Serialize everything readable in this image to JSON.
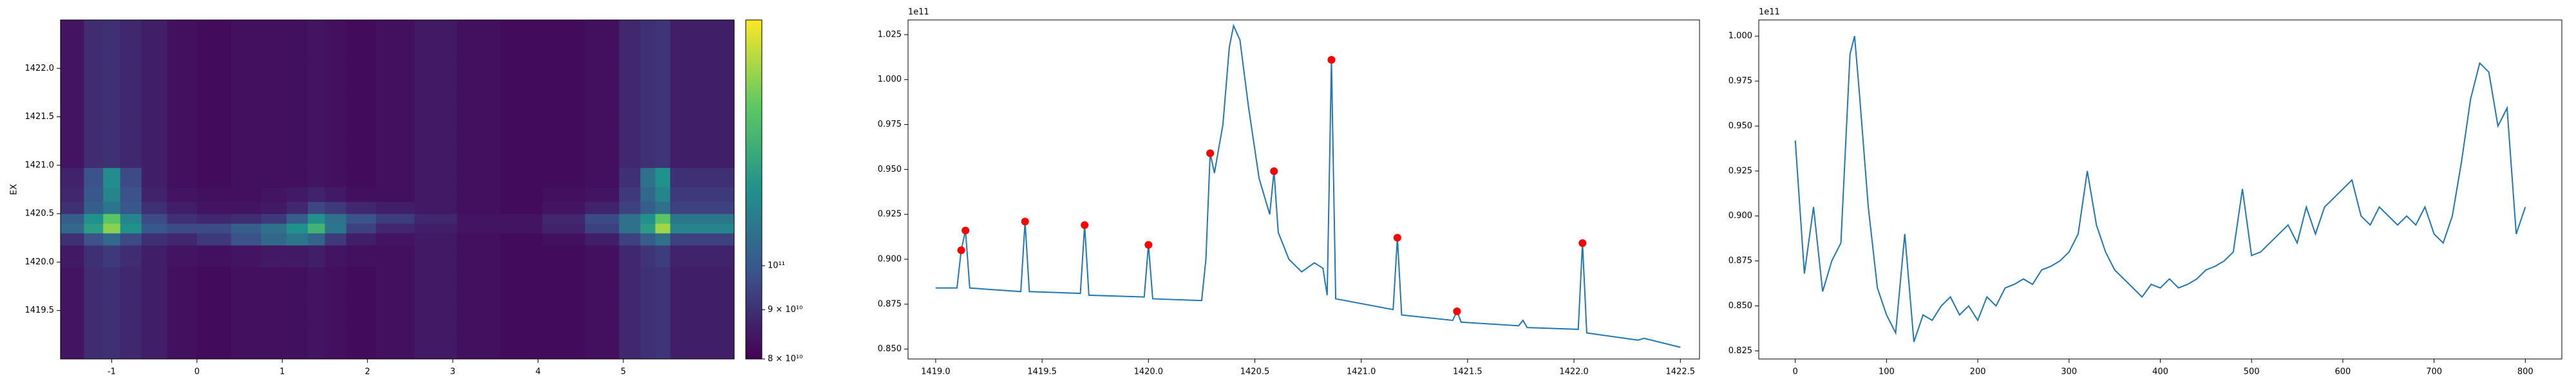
{
  "chart_data": [
    {
      "type": "heatmap",
      "ylabel": "EX",
      "x": [
        -1.45,
        -1.2,
        -1.0,
        -0.8,
        -0.5,
        -0.2,
        0.2,
        0.6,
        0.9,
        1.2,
        1.4,
        1.6,
        1.9,
        2.3,
        2.8,
        3.3,
        3.8,
        4.3,
        4.8,
        5.1,
        5.3,
        5.45,
        5.65
      ],
      "y": [
        1419.2,
        1419.5,
        1419.8,
        1420.1,
        1420.25,
        1420.35,
        1420.45,
        1420.55,
        1420.7,
        1420.85,
        1421.1,
        1421.5,
        1421.9,
        1422.25
      ],
      "z": [
        [
          84000000000.0,
          89000000000.0,
          90000000000.0,
          88000000000.0,
          86000000000.0,
          83000000000.0,
          82000000000.0,
          83000000000.0,
          83000000000.0,
          83000000000.0,
          84000000000.0,
          83000000000.0,
          82000000000.0,
          83000000000.0,
          85000000000.0,
          83000000000.0,
          82000000000.0,
          82000000000.0,
          83000000000.0,
          88000000000.0,
          90000000000.0,
          91000000000.0,
          86000000000.0
        ],
        [
          84000000000.0,
          89000000000.0,
          90000000000.0,
          88000000000.0,
          86000000000.0,
          83000000000.0,
          82000000000.0,
          83000000000.0,
          83000000000.0,
          83000000000.0,
          84000000000.0,
          83000000000.0,
          82000000000.0,
          83000000000.0,
          85000000000.0,
          83000000000.0,
          82000000000.0,
          82000000000.0,
          83000000000.0,
          88000000000.0,
          90000000000.0,
          91000000000.0,
          86000000000.0
        ],
        [
          84000000000.0,
          89000000000.0,
          90000000000.0,
          88000000000.0,
          86000000000.0,
          83000000000.0,
          82000000000.0,
          83000000000.0,
          83000000000.0,
          83000000000.0,
          84000000000.0,
          83000000000.0,
          82000000000.0,
          83000000000.0,
          85000000000.0,
          83000000000.0,
          82000000000.0,
          82000000000.0,
          83000000000.0,
          88000000000.0,
          90000000000.0,
          91000000000.0,
          86000000000.0
        ],
        [
          85000000000.0,
          90000000000.0,
          92000000000.0,
          89000000000.0,
          86000000000.0,
          84000000000.0,
          83000000000.0,
          84000000000.0,
          85000000000.0,
          85000000000.0,
          86000000000.0,
          84000000000.0,
          83000000000.0,
          83000000000.0,
          85000000000.0,
          83000000000.0,
          82000000000.0,
          82000000000.0,
          83000000000.0,
          88000000000.0,
          91000000000.0,
          93000000000.0,
          87000000000.0
        ],
        [
          90000000000.0,
          98000000000.0,
          105000000000.0,
          96000000000.0,
          90000000000.0,
          88000000000.0,
          92000000000.0,
          98000000000.0,
          105000000000.0,
          110000000000.0,
          104000000000.0,
          92000000000.0,
          86000000000.0,
          84000000000.0,
          85000000000.0,
          83000000000.0,
          82000000000.0,
          83000000000.0,
          86000000000.0,
          94000000000.0,
          102000000000.0,
          108000000000.0,
          94000000000.0
        ],
        [
          105000000000.0,
          125000000000.0,
          155000000000.0,
          120000000000.0,
          100000000000.0,
          96000000000.0,
          96000000000.0,
          102000000000.0,
          108000000000.0,
          120000000000.0,
          135000000000.0,
          110000000000.0,
          94000000000.0,
          88000000000.0,
          86000000000.0,
          84000000000.0,
          84000000000.0,
          87000000000.0,
          94000000000.0,
          108000000000.0,
          125000000000.0,
          160000000000.0,
          115000000000.0
        ],
        [
          102000000000.0,
          120000000000.0,
          145000000000.0,
          115000000000.0,
          96000000000.0,
          90000000000.0,
          88000000000.0,
          89000000000.0,
          92000000000.0,
          102000000000.0,
          120000000000.0,
          108000000000.0,
          98000000000.0,
          93000000000.0,
          88000000000.0,
          84000000000.0,
          84000000000.0,
          88000000000.0,
          96000000000.0,
          108000000000.0,
          120000000000.0,
          145000000000.0,
          110000000000.0
        ],
        [
          90000000000.0,
          102000000000.0,
          110000000000.0,
          100000000000.0,
          90000000000.0,
          86000000000.0,
          84000000000.0,
          84000000000.0,
          85000000000.0,
          88000000000.0,
          95000000000.0,
          92000000000.0,
          88000000000.0,
          86000000000.0,
          85000000000.0,
          83000000000.0,
          82000000000.0,
          84000000000.0,
          87000000000.0,
          94000000000.0,
          102000000000.0,
          108000000000.0,
          94000000000.0
        ],
        [
          88000000000.0,
          100000000000.0,
          115000000000.0,
          98000000000.0,
          87000000000.0,
          84000000000.0,
          83000000000.0,
          83000000000.0,
          84000000000.0,
          85000000000.0,
          87000000000.0,
          85000000000.0,
          83000000000.0,
          83000000000.0,
          85000000000.0,
          83000000000.0,
          82000000000.0,
          83000000000.0,
          84000000000.0,
          92000000000.0,
          105000000000.0,
          115000000000.0,
          92000000000.0
        ],
        [
          87000000000.0,
          98000000000.0,
          118000000000.0,
          96000000000.0,
          86000000000.0,
          83000000000.0,
          82000000000.0,
          83000000000.0,
          83000000000.0,
          83000000000.0,
          84000000000.0,
          83000000000.0,
          82000000000.0,
          83000000000.0,
          85000000000.0,
          83000000000.0,
          82000000000.0,
          82000000000.0,
          83000000000.0,
          90000000000.0,
          108000000000.0,
          120000000000.0,
          90000000000.0
        ],
        [
          84000000000.0,
          89000000000.0,
          90000000000.0,
          88000000000.0,
          86000000000.0,
          83000000000.0,
          82000000000.0,
          83000000000.0,
          83000000000.0,
          83000000000.0,
          84000000000.0,
          83000000000.0,
          82000000000.0,
          83000000000.0,
          85000000000.0,
          83000000000.0,
          82000000000.0,
          82000000000.0,
          83000000000.0,
          88000000000.0,
          90000000000.0,
          91000000000.0,
          86000000000.0
        ],
        [
          84000000000.0,
          89000000000.0,
          90000000000.0,
          88000000000.0,
          86000000000.0,
          83000000000.0,
          82000000000.0,
          83000000000.0,
          83000000000.0,
          83000000000.0,
          84000000000.0,
          83000000000.0,
          82000000000.0,
          83000000000.0,
          85000000000.0,
          83000000000.0,
          82000000000.0,
          82000000000.0,
          83000000000.0,
          88000000000.0,
          90000000000.0,
          91000000000.0,
          86000000000.0
        ],
        [
          84000000000.0,
          89000000000.0,
          90000000000.0,
          88000000000.0,
          86000000000.0,
          83000000000.0,
          82000000000.0,
          83000000000.0,
          83000000000.0,
          83000000000.0,
          84000000000.0,
          83000000000.0,
          82000000000.0,
          83000000000.0,
          85000000000.0,
          83000000000.0,
          82000000000.0,
          82000000000.0,
          83000000000.0,
          88000000000.0,
          90000000000.0,
          91000000000.0,
          86000000000.0
        ],
        [
          84000000000.0,
          89000000000.0,
          90000000000.0,
          88000000000.0,
          86000000000.0,
          83000000000.0,
          82000000000.0,
          83000000000.0,
          83000000000.0,
          83000000000.0,
          84000000000.0,
          83000000000.0,
          82000000000.0,
          83000000000.0,
          85000000000.0,
          83000000000.0,
          82000000000.0,
          82000000000.0,
          83000000000.0,
          88000000000.0,
          90000000000.0,
          91000000000.0,
          86000000000.0
        ]
      ],
      "xlim": [
        -1.6,
        6.3
      ],
      "ylim": [
        1419.0,
        1422.5
      ],
      "xticks": [
        -1,
        0,
        1,
        2,
        3,
        4,
        5
      ],
      "yticks": [
        1419.5,
        {
          "value": 1420,
          "label": "1420.0"
        },
        1420.5,
        {
          "value": 1421,
          "label": "1421.0"
        },
        1421.5,
        {
          "value": 1422,
          "label": "1422.0"
        }
      ],
      "colormap": "viridis",
      "color_scale": "log",
      "clim": [
        80000000000.0,
        180000000000.0
      ],
      "cticks": [
        {
          "value": 80000000000.0,
          "label": "8 × 10¹⁰"
        },
        {
          "value": 90000000000.0,
          "label": "9 × 10¹⁰"
        },
        {
          "value": 100000000000.0,
          "label": "10¹¹"
        }
      ]
    },
    {
      "type": "line",
      "offset_label": "1e11",
      "series": [
        {
          "color": "#1f77b4",
          "x": [
            1419.0,
            1419.1,
            1419.12,
            1419.14,
            1419.16,
            1419.4,
            1419.42,
            1419.44,
            1419.68,
            1419.7,
            1419.72,
            1419.98,
            1420.0,
            1420.02,
            1420.25,
            1420.27,
            1420.29,
            1420.31,
            1420.35,
            1420.38,
            1420.4,
            1420.43,
            1420.47,
            1420.52,
            1420.57,
            1420.59,
            1420.61,
            1420.66,
            1420.72,
            1420.78,
            1420.82,
            1420.84,
            1420.86,
            1420.88,
            1421.15,
            1421.17,
            1421.19,
            1421.43,
            1421.45,
            1421.47,
            1421.74,
            1421.76,
            1421.78,
            1422.02,
            1422.04,
            1422.06,
            1422.3,
            1422.33,
            1422.5
          ],
          "values": [
            0.884,
            0.884,
            0.905,
            0.916,
            0.884,
            0.882,
            0.921,
            0.882,
            0.881,
            0.919,
            0.88,
            0.879,
            0.908,
            0.878,
            0.877,
            0.9,
            0.959,
            0.948,
            0.975,
            1.018,
            1.03,
            1.022,
            0.985,
            0.945,
            0.925,
            0.949,
            0.915,
            0.9,
            0.893,
            0.898,
            0.895,
            0.88,
            1.011,
            0.878,
            0.872,
            0.912,
            0.869,
            0.866,
            0.871,
            0.865,
            0.863,
            0.866,
            0.862,
            0.861,
            0.909,
            0.859,
            0.855,
            0.856,
            0.851
          ]
        },
        {
          "color": "red",
          "marker": "circle",
          "x": [
            1419.12,
            1419.14,
            1419.42,
            1419.7,
            1420.0,
            1420.29,
            1420.59,
            1420.86,
            1421.17,
            1421.45,
            1422.04
          ],
          "values": [
            0.905,
            0.916,
            0.921,
            0.919,
            0.908,
            0.959,
            0.949,
            1.011,
            0.912,
            0.871,
            0.909
          ]
        }
      ],
      "xlim": [
        1418.87,
        1422.59
      ],
      "ylim": [
        0.8445,
        1.0332
      ],
      "xticks": [
        {
          "value": 1419,
          "label": "1419.0"
        },
        1419.5,
        {
          "value": 1420,
          "label": "1420.0"
        },
        1420.5,
        {
          "value": 1421,
          "label": "1421.0"
        },
        1421.5,
        {
          "value": 1422,
          "label": "1422.0"
        },
        1422.5
      ],
      "yticks": [
        {
          "value": 0.85,
          "label": "0.850"
        },
        {
          "value": 0.875,
          "label": "0.875"
        },
        {
          "value": 0.9,
          "label": "0.900"
        },
        {
          "value": 0.925,
          "label": "0.925"
        },
        {
          "value": 0.95,
          "label": "0.950"
        },
        {
          "value": 0.975,
          "label": "0.975"
        },
        {
          "value": 1,
          "label": "1.000"
        },
        {
          "value": 1.025,
          "label": "1.025"
        }
      ]
    },
    {
      "type": "line",
      "offset_label": "1e11",
      "series": [
        {
          "color": "#1f77b4",
          "x": [
            0,
            10,
            20,
            30,
            40,
            50,
            60,
            65,
            70,
            80,
            90,
            100,
            110,
            120,
            130,
            140,
            150,
            160,
            170,
            180,
            190,
            200,
            210,
            220,
            230,
            240,
            250,
            260,
            270,
            280,
            290,
            300,
            310,
            320,
            330,
            340,
            350,
            360,
            370,
            380,
            390,
            400,
            410,
            420,
            430,
            440,
            450,
            460,
            470,
            480,
            490,
            500,
            510,
            520,
            530,
            540,
            550,
            560,
            570,
            580,
            590,
            600,
            610,
            620,
            630,
            640,
            650,
            660,
            670,
            680,
            690,
            700,
            710,
            720,
            730,
            740,
            750,
            760,
            770,
            780,
            790,
            800
          ],
          "values": [
            0.942,
            0.868,
            0.905,
            0.858,
            0.875,
            0.885,
            0.99,
            1.0,
            0.97,
            0.905,
            0.86,
            0.845,
            0.835,
            0.89,
            0.83,
            0.845,
            0.842,
            0.85,
            0.855,
            0.845,
            0.85,
            0.842,
            0.855,
            0.85,
            0.86,
            0.862,
            0.865,
            0.862,
            0.87,
            0.872,
            0.875,
            0.88,
            0.89,
            0.925,
            0.895,
            0.88,
            0.87,
            0.865,
            0.86,
            0.855,
            0.862,
            0.86,
            0.865,
            0.86,
            0.862,
            0.865,
            0.87,
            0.872,
            0.875,
            0.88,
            0.915,
            0.878,
            0.88,
            0.885,
            0.89,
            0.895,
            0.885,
            0.905,
            0.89,
            0.905,
            0.91,
            0.915,
            0.92,
            0.9,
            0.895,
            0.905,
            0.9,
            0.895,
            0.9,
            0.895,
            0.905,
            0.89,
            0.885,
            0.9,
            0.93,
            0.965,
            0.985,
            0.98,
            0.95,
            0.96,
            0.89,
            0.905
          ]
        }
      ],
      "xlim": [
        -40,
        840
      ],
      "ylim": [
        0.8205,
        1.009
      ],
      "xticks": [
        0,
        100,
        200,
        300,
        400,
        500,
        600,
        700,
        800
      ],
      "yticks": [
        {
          "value": 0.825,
          "label": "0.825"
        },
        {
          "value": 0.85,
          "label": "0.850"
        },
        {
          "value": 0.875,
          "label": "0.875"
        },
        {
          "value": 0.9,
          "label": "0.900"
        },
        {
          "value": 0.925,
          "label": "0.925"
        },
        {
          "value": 0.95,
          "label": "0.950"
        },
        {
          "value": 0.975,
          "label": "0.975"
        },
        {
          "value": 1,
          "label": "1.000"
        }
      ]
    }
  ]
}
